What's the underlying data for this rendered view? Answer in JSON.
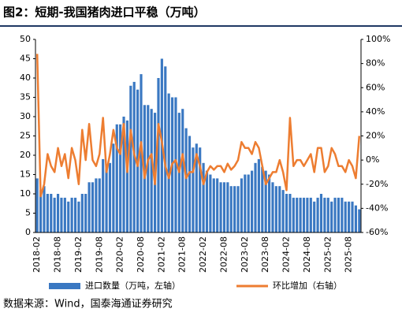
{
  "chart_data": {
    "type": "bar_line",
    "title": "图2：短期-我国猪肉进口平稳（万吨）",
    "source": "数据来源：Wind，国泰海通证券研究",
    "categories": [
      "2018-02",
      null,
      null,
      null,
      null,
      null,
      "2018-08",
      null,
      null,
      null,
      null,
      null,
      "2019-02",
      null,
      null,
      null,
      null,
      null,
      "2019-08",
      null,
      null,
      null,
      null,
      null,
      "2020-02",
      null,
      null,
      null,
      null,
      null,
      "2020-08",
      null,
      null,
      null,
      null,
      null,
      "2021-02",
      null,
      null,
      null,
      null,
      null,
      "2021-08",
      null,
      null,
      null,
      null,
      null,
      "2022-02",
      null,
      null,
      null,
      null,
      null,
      "2022-08",
      null,
      null,
      null,
      null,
      null,
      "2023-02",
      null,
      null,
      null,
      null,
      null,
      "2023-08",
      null,
      null,
      null,
      null,
      null,
      "2024-02",
      null,
      null,
      null,
      null,
      null,
      "2024-08",
      null,
      null,
      null,
      null,
      null,
      "2025-02",
      null,
      null,
      null,
      null,
      null,
      "2025-08",
      null,
      null,
      null
    ],
    "series": [
      {
        "name": "进口数量（万吨，左轴）",
        "color": "#3a78c2",
        "axis": "y",
        "values": [
          14,
          11,
          12,
          10,
          10,
          9,
          10,
          9,
          9,
          8,
          9,
          9,
          8,
          10,
          10,
          13,
          13,
          14,
          14,
          19,
          17,
          18,
          23,
          28,
          28,
          30,
          29,
          38,
          39,
          37,
          41,
          33,
          33,
          32,
          31,
          40,
          45,
          43,
          36,
          35,
          35,
          31,
          32,
          27,
          25,
          22,
          23,
          22,
          18,
          16,
          15,
          14,
          14,
          13,
          13,
          13,
          12,
          12,
          12,
          14,
          15,
          15,
          16,
          18,
          19,
          17,
          16,
          15,
          13,
          12,
          12,
          11,
          10,
          10,
          9,
          9,
          9,
          9,
          9,
          9,
          8,
          9,
          10,
          9,
          9,
          8,
          9,
          9,
          9,
          8,
          8,
          8,
          7,
          6
        ]
      },
      {
        "name": "环比增加（右轴）",
        "color": "#ed7d31",
        "axis": "y2",
        "values": [
          88,
          -30,
          -20,
          5,
          -5,
          -10,
          10,
          -5,
          5,
          -15,
          10,
          0,
          -20,
          25,
          0,
          30,
          0,
          -5,
          5,
          35,
          -10,
          5,
          25,
          10,
          5,
          30,
          -10,
          25,
          5,
          -5,
          15,
          -15,
          0,
          5,
          -20,
          30,
          15,
          -5,
          -15,
          -3,
          0,
          -10,
          5,
          -15,
          -10,
          -10,
          5,
          -5,
          -20,
          -10,
          -5,
          -8,
          -5,
          -5,
          -10,
          -3,
          -8,
          -5,
          0,
          15,
          10,
          10,
          5,
          15,
          10,
          -5,
          -20,
          -15,
          -10,
          -10,
          0,
          -10,
          -25,
          35,
          -5,
          0,
          0,
          -5,
          0,
          5,
          -10,
          10,
          10,
          -10,
          -5,
          10,
          5,
          -5,
          -5,
          -10,
          0,
          -5,
          -15,
          20
        ]
      }
    ],
    "ylim": [
      0,
      50
    ],
    "yticks": [
      0,
      5,
      10,
      15,
      20,
      25,
      30,
      35,
      40,
      45,
      50
    ],
    "y2lim": [
      -60,
      100
    ],
    "y2ticks": [
      {
        "value": -60,
        "label": "-60%"
      },
      {
        "value": -40,
        "label": "-40%"
      },
      {
        "value": -20,
        "label": "-20%"
      },
      {
        "value": 0,
        "label": "0%"
      },
      {
        "value": 20,
        "label": "20%"
      },
      {
        "value": 40,
        "label": "40%"
      },
      {
        "value": 60,
        "label": "60%"
      },
      {
        "value": 80,
        "label": "80%"
      },
      {
        "value": 100,
        "label": "100%"
      }
    ],
    "legend": "bottom"
  }
}
